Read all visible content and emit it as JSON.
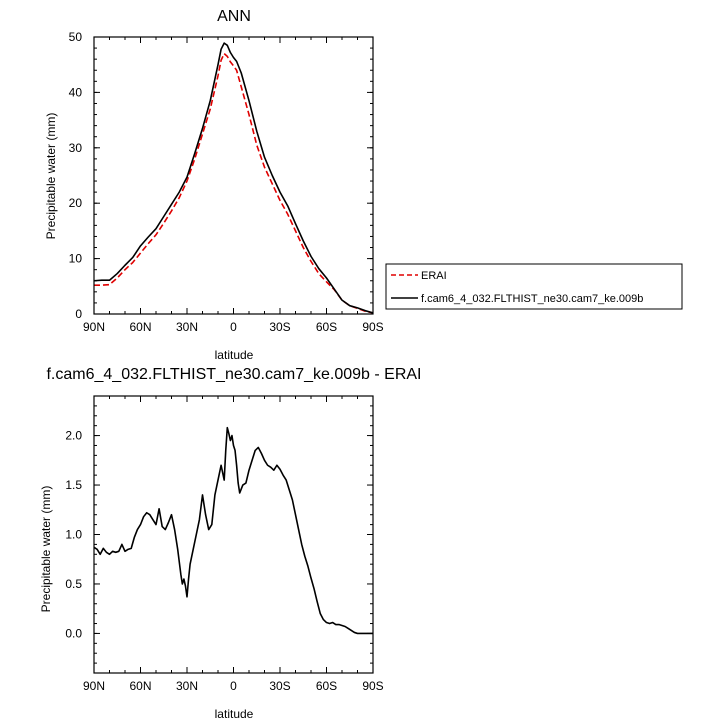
{
  "chart_data": [
    {
      "type": "line",
      "title": "ANN",
      "xlabel": "latitude",
      "ylabel": "Precipitable water (mm)",
      "xlim": [
        90,
        -90
      ],
      "ylim": [
        0,
        50
      ],
      "x_ticks": [
        {
          "value": 90,
          "label": "90N"
        },
        {
          "value": 60,
          "label": "60N"
        },
        {
          "value": 30,
          "label": "30N"
        },
        {
          "value": 0,
          "label": "0"
        },
        {
          "value": -30,
          "label": "30S"
        },
        {
          "value": -60,
          "label": "60S"
        },
        {
          "value": -90,
          "label": "90S"
        }
      ],
      "y_ticks": [
        0,
        10,
        20,
        30,
        40,
        50
      ],
      "legend_position": "right",
      "series": [
        {
          "name": "ERAI",
          "color": "#e00000",
          "dash": "dashed",
          "x": [
            90,
            85,
            80,
            75,
            70,
            65,
            60,
            55,
            50,
            45,
            40,
            35,
            30,
            25,
            20,
            15,
            10,
            8,
            6,
            4,
            2,
            0,
            -2,
            -5,
            -10,
            -15,
            -20,
            -25,
            -30,
            -35,
            -40,
            -45,
            -50,
            -55,
            -60,
            -65,
            -70,
            -75,
            -80,
            -85,
            -90
          ],
          "values": [
            5.2,
            5.2,
            5.3,
            6.5,
            8.0,
            9.3,
            11.0,
            12.7,
            14.3,
            16.4,
            18.6,
            21.0,
            24.0,
            28.0,
            32.5,
            37.0,
            43.0,
            45.8,
            47.0,
            46.5,
            45.5,
            44.8,
            44.0,
            41.0,
            36.0,
            30.5,
            26.5,
            23.5,
            20.5,
            18.0,
            15.0,
            12.0,
            9.5,
            7.3,
            5.8,
            4.4,
            2.5,
            1.5,
            1.0,
            0.5,
            0.2
          ]
        },
        {
          "name": "f.cam6_4_032.FLTHIST_ne30.cam7_ke.009b",
          "color": "#000000",
          "dash": "solid",
          "x": [
            90,
            85,
            80,
            75,
            70,
            65,
            60,
            55,
            50,
            45,
            40,
            35,
            30,
            25,
            20,
            15,
            10,
            8,
            6,
            4,
            2,
            0,
            -2,
            -5,
            -10,
            -15,
            -20,
            -25,
            -30,
            -35,
            -40,
            -45,
            -50,
            -55,
            -60,
            -65,
            -70,
            -75,
            -80,
            -85,
            -90
          ],
          "values": [
            6.0,
            6.1,
            6.1,
            7.3,
            8.8,
            10.2,
            12.3,
            13.9,
            15.4,
            17.6,
            19.8,
            22.0,
            24.7,
            29.0,
            33.5,
            38.5,
            45.0,
            47.8,
            48.9,
            48.5,
            47.2,
            46.3,
            45.6,
            43.5,
            38.5,
            33.0,
            28.3,
            25.0,
            22.0,
            19.5,
            16.3,
            13.2,
            10.4,
            8.2,
            6.5,
            4.5,
            2.5,
            1.5,
            1.1,
            0.6,
            0.2
          ]
        }
      ]
    },
    {
      "type": "line",
      "title": "f.cam6_4_032.FLTHIST_ne30.cam7_ke.009b - ERAI",
      "xlabel": "latitude",
      "ylabel": "Precipitable water (mm)",
      "xlim": [
        90,
        -90
      ],
      "ylim": [
        -0.4,
        2.4
      ],
      "x_ticks": [
        {
          "value": 90,
          "label": "90N"
        },
        {
          "value": 60,
          "label": "60N"
        },
        {
          "value": 30,
          "label": "30N"
        },
        {
          "value": 0,
          "label": "0"
        },
        {
          "value": -30,
          "label": "30S"
        },
        {
          "value": -60,
          "label": "60S"
        },
        {
          "value": -90,
          "label": "90S"
        }
      ],
      "y_ticks": [
        {
          "value": 0.0,
          "label": "0.0"
        },
        {
          "value": 0.5,
          "label": "0.5"
        },
        {
          "value": 1.0,
          "label": "1.0"
        },
        {
          "value": 1.5,
          "label": "1.5"
        },
        {
          "value": 2.0,
          "label": "2.0"
        }
      ],
      "series": [
        {
          "color": "#000000",
          "dash": "solid",
          "x": [
            90,
            88,
            86,
            84,
            82,
            80,
            78,
            76,
            74,
            72,
            70,
            68,
            66,
            64,
            62,
            60,
            58,
            56,
            54,
            52,
            50,
            48,
            46,
            44,
            42,
            40,
            38,
            36,
            34,
            33,
            32,
            31,
            30,
            29,
            28,
            26,
            24,
            22,
            20,
            18,
            16,
            14,
            12,
            10,
            8,
            6,
            5,
            4,
            3,
            2,
            1,
            0,
            -1,
            -2,
            -3,
            -4,
            -6,
            -8,
            -10,
            -12,
            -14,
            -16,
            -18,
            -20,
            -22,
            -24,
            -26,
            -28,
            -30,
            -32,
            -34,
            -36,
            -38,
            -40,
            -42,
            -44,
            -46,
            -48,
            -50,
            -52,
            -54,
            -56,
            -58,
            -60,
            -62,
            -64,
            -66,
            -68,
            -70,
            -72,
            -74,
            -76,
            -78,
            -80,
            -82,
            -84,
            -86,
            -88,
            -90
          ],
          "values": [
            0.87,
            0.85,
            0.8,
            0.86,
            0.82,
            0.8,
            0.83,
            0.82,
            0.83,
            0.9,
            0.83,
            0.85,
            0.86,
            0.97,
            1.05,
            1.1,
            1.18,
            1.22,
            1.2,
            1.15,
            1.1,
            1.26,
            1.08,
            1.05,
            1.12,
            1.2,
            1.05,
            0.85,
            0.6,
            0.5,
            0.55,
            0.48,
            0.37,
            0.55,
            0.7,
            0.85,
            1.0,
            1.15,
            1.4,
            1.2,
            1.05,
            1.1,
            1.4,
            1.55,
            1.7,
            1.55,
            1.85,
            2.08,
            2.02,
            1.95,
            2.0,
            1.9,
            1.85,
            1.7,
            1.52,
            1.42,
            1.5,
            1.52,
            1.65,
            1.75,
            1.85,
            1.88,
            1.82,
            1.75,
            1.7,
            1.68,
            1.65,
            1.7,
            1.66,
            1.6,
            1.55,
            1.45,
            1.35,
            1.2,
            1.05,
            0.9,
            0.78,
            0.68,
            0.56,
            0.45,
            0.32,
            0.2,
            0.14,
            0.11,
            0.1,
            0.11,
            0.09,
            0.09,
            0.08,
            0.07,
            0.05,
            0.03,
            0.01,
            0.0,
            0.0,
            0.0,
            0.0,
            0.0,
            0.0
          ]
        }
      ]
    }
  ]
}
